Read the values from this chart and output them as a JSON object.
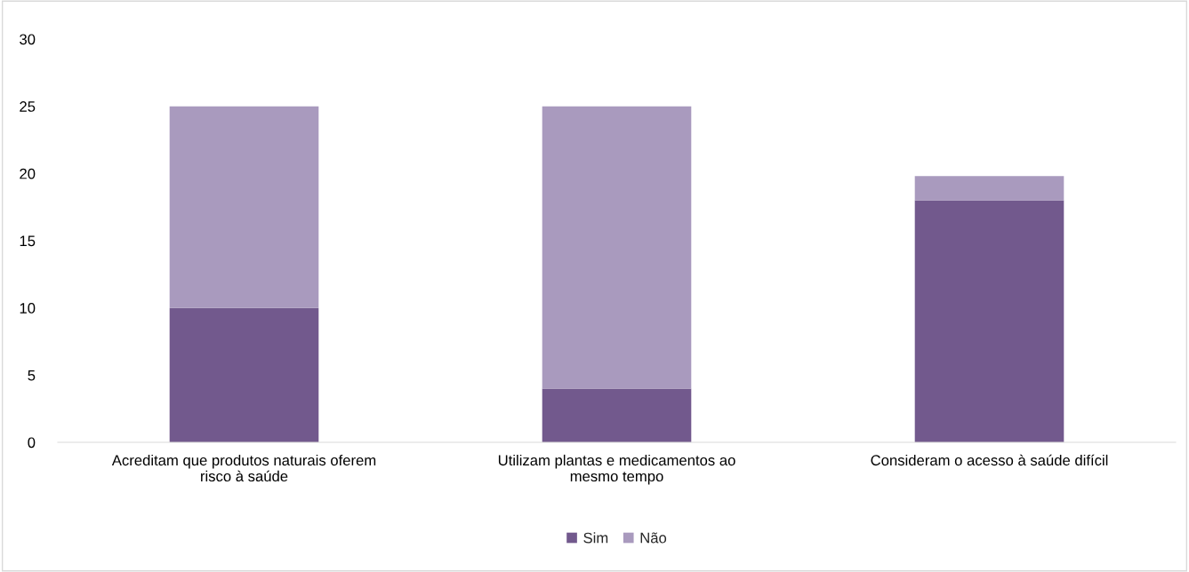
{
  "chart_data": {
    "type": "bar",
    "stacked": true,
    "categories": [
      "Acreditam que produtos naturais oferem risco à saúde",
      "Utilizam plantas e medicamentos ao mesmo tempo",
      "Consideram o acesso à saúde difícil"
    ],
    "series": [
      {
        "name": "Sim",
        "color": "#72598d",
        "values": [
          10,
          4,
          18
        ]
      },
      {
        "name": "Não",
        "color": "#a99abe",
        "values": [
          15,
          21,
          1.8
        ]
      }
    ],
    "ylim": [
      0,
      30
    ],
    "yticks": [
      0,
      5,
      10,
      15,
      20,
      25,
      30
    ],
    "grid": false,
    "legend": "bottom"
  }
}
